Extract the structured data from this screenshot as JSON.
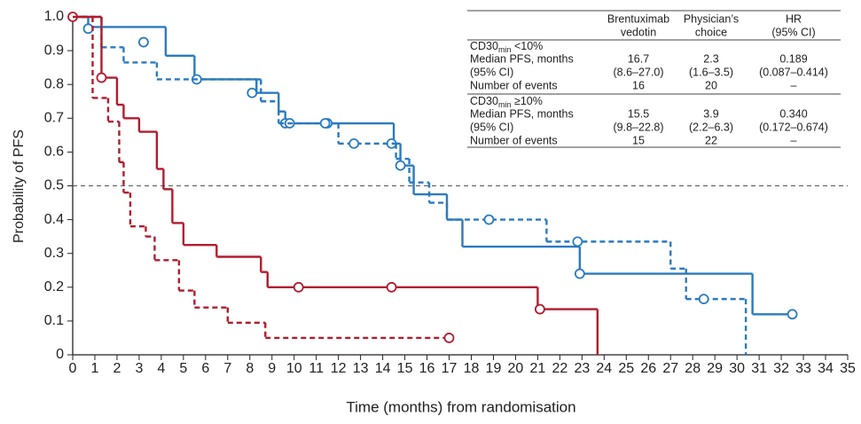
{
  "chart_data": {
    "type": "step",
    "x_label": "Time (months) from randomisation",
    "y_label": "Probability of PFS",
    "xlim": [
      0,
      35
    ],
    "xticks": [
      0,
      1,
      2,
      3,
      4,
      5,
      6,
      7,
      8,
      9,
      10,
      11,
      12,
      13,
      14,
      15,
      16,
      17,
      18,
      19,
      20,
      21,
      22,
      23,
      24,
      25,
      26,
      27,
      28,
      29,
      30,
      31,
      32,
      33,
      34,
      35
    ],
    "ylim": [
      0,
      1
    ],
    "yticks": [
      0,
      0.1,
      0.2,
      0.3,
      0.4,
      0.5,
      0.6,
      0.7,
      0.8,
      0.9,
      {
        "value": 1,
        "label": "1.0"
      }
    ],
    "reference_line": 0.5,
    "series": [
      {
        "color": "#2a7bbf",
        "dash": false,
        "x": [
          0,
          0.7,
          4.2,
          5.5,
          8.3,
          9.3,
          9.6,
          14.5,
          14.8,
          15.4,
          16.9,
          17.6,
          22.9,
          30.7,
          32.5
        ],
        "values": [
          1,
          0.97,
          0.885,
          0.815,
          0.775,
          0.72,
          0.685,
          0.625,
          0.56,
          0.475,
          0.4,
          0.32,
          0.24,
          0.12,
          0.12
        ],
        "censor_x": [
          0.7,
          3.2,
          5.6,
          8.1,
          9.6,
          9.8,
          11.5,
          14.4,
          14.8,
          22.9,
          32.5
        ],
        "censor_values": [
          0.965,
          0.925,
          0.815,
          0.775,
          0.685,
          0.685,
          0.685,
          0.625,
          0.56,
          0.24,
          0.12
        ]
      },
      {
        "color": "#2a7bbf",
        "dash": true,
        "x": [
          0,
          1.3,
          2.3,
          3.8,
          8.3,
          8.5,
          9.3,
          12.0,
          14.6,
          15.2,
          16.1,
          16.9,
          21.4,
          27.0,
          27.7,
          30.4
        ],
        "values": [
          1,
          0.91,
          0.865,
          0.815,
          0.815,
          0.75,
          0.685,
          0.625,
          0.58,
          0.51,
          0.45,
          0.4,
          0.335,
          0.255,
          0.165,
          0
        ],
        "censor_x": [
          11.4,
          12.7,
          18.8,
          22.8,
          28.5
        ],
        "censor_values": [
          0.685,
          0.625,
          0.4,
          0.335,
          0.165
        ]
      },
      {
        "color": "#b01c2e",
        "dash": false,
        "x": [
          0,
          1.3,
          2.0,
          2.3,
          3.0,
          3.8,
          4.1,
          4.5,
          5.0,
          6.5,
          8.5,
          8.8,
          21.0,
          23.7
        ],
        "values": [
          1,
          0.82,
          0.74,
          0.7,
          0.66,
          0.55,
          0.49,
          0.39,
          0.325,
          0.29,
          0.245,
          0.2,
          0.135,
          0
        ],
        "censor_x": [
          0,
          1.3,
          10.2,
          14.4,
          21.1
        ],
        "censor_values": [
          1,
          0.82,
          0.2,
          0.2,
          0.135
        ]
      },
      {
        "color": "#b01c2e",
        "dash": true,
        "x": [
          0,
          0.9,
          1.6,
          2.1,
          2.3,
          2.6,
          3.3,
          3.7,
          4.8,
          5.5,
          7.0,
          8.7,
          17.0
        ],
        "values": [
          1,
          0.76,
          0.69,
          0.57,
          0.48,
          0.38,
          0.35,
          0.28,
          0.19,
          0.14,
          0.095,
          0.05,
          0.05
        ],
        "censor_x": [
          17.0
        ],
        "censor_values": [
          0.05
        ]
      }
    ]
  },
  "table": {
    "header": [
      [
        "Brentuximab",
        "vedotin"
      ],
      [
        "Physician’s",
        "choice"
      ],
      [
        "HR",
        "(95% CI)"
      ]
    ],
    "groups": [
      {
        "label": {
          "main": "CD30",
          "sub": "min",
          "rest": " <10%"
        },
        "rows": [
          [
            "Median PFS, months",
            "16.7",
            "2.3",
            "0.189"
          ],
          [
            "(95% CI)",
            "(8.6–27.0)",
            "(1.6–3.5)",
            "(0.087–0.414)"
          ],
          [
            "Number of events",
            "16",
            "20",
            "–"
          ]
        ]
      },
      {
        "label": {
          "main": "CD30",
          "sub": "min",
          "rest": " ≥10%"
        },
        "rows": [
          [
            "Median PFS, months",
            "15.5",
            "3.9",
            "0.340"
          ],
          [
            "(95% CI)",
            "(9.8–22.8)",
            "(2.2–6.3)",
            "(0.172–0.674)"
          ],
          [
            "Number of events",
            "15",
            "22",
            "–"
          ]
        ]
      }
    ]
  }
}
